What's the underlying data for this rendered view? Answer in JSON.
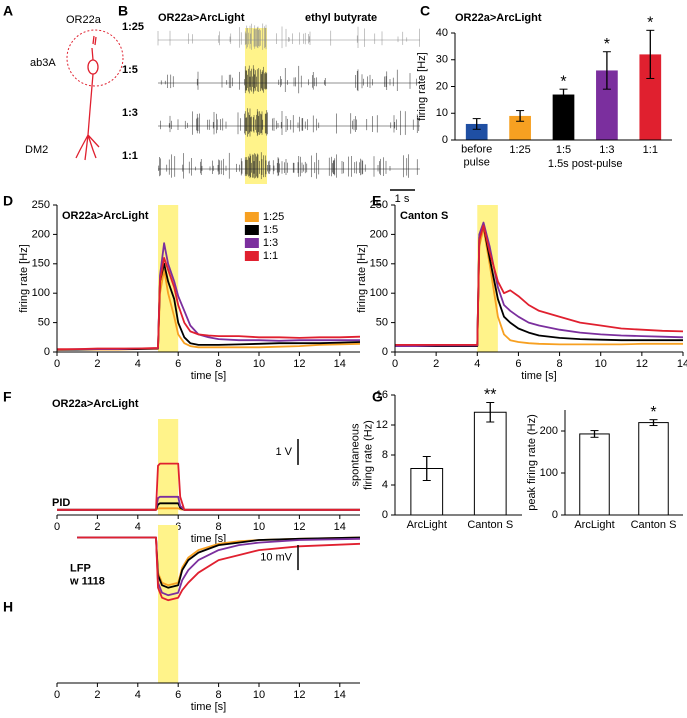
{
  "figure_A": {
    "panel": "A",
    "labels": [
      "OR22a",
      "ab3A",
      "DM2"
    ]
  },
  "figure_B": {
    "panel": "B",
    "title": "OR22a>ArcLight",
    "stimulus_label": "ethyl butyrate",
    "rows": [
      "1:25",
      "1:5",
      "1:3",
      "1:1"
    ],
    "scale_bar": "1 s"
  },
  "chart_data": [
    {
      "panel": "C",
      "type": "bar",
      "title": "OR22a>ArcLight",
      "ylabel": "firing rate [Hz]",
      "categories": [
        "before\npulse",
        "1:25",
        "1:5",
        "1:3",
        "1:1"
      ],
      "group_label": "1.5s post-pulse",
      "values": [
        6,
        9,
        17,
        26,
        32
      ],
      "errors": [
        2,
        2,
        2,
        7,
        9
      ],
      "colors": [
        "#1f4fa3",
        "#f7a021",
        "#000000",
        "#7b2f9e",
        "#e0202f"
      ],
      "significance": [
        null,
        null,
        "*",
        "*",
        "*"
      ],
      "ylim": [
        0,
        40
      ],
      "yticks": [
        0,
        10,
        20,
        30,
        40
      ]
    },
    {
      "panel": "D",
      "type": "line",
      "title": "OR22a>ArcLight",
      "xlabel": "time [s]",
      "ylabel": "firing rate [Hz]",
      "stimulus": [
        5,
        6
      ],
      "legend": "upper right",
      "x": [
        0,
        1,
        2,
        3,
        4,
        5,
        5.1,
        5.3,
        5.5,
        5.8,
        6,
        6.3,
        6.6,
        7,
        7.5,
        8,
        9,
        10,
        11,
        12,
        13,
        14,
        15
      ],
      "series": [
        {
          "name": "1:25",
          "color": "#f7a021",
          "values": [
            3,
            4,
            4,
            4,
            5,
            5,
            100,
            140,
            100,
            60,
            30,
            15,
            10,
            8,
            8,
            8,
            8,
            8,
            9,
            10,
            12,
            13,
            14
          ]
        },
        {
          "name": "1:5",
          "color": "#000000",
          "values": [
            4,
            4,
            5,
            5,
            5,
            6,
            120,
            150,
            120,
            90,
            50,
            25,
            15,
            12,
            12,
            12,
            13,
            14,
            15,
            15,
            15,
            16,
            17
          ]
        },
        {
          "name": "1:3",
          "color": "#7b2f9e",
          "values": [
            4,
            5,
            5,
            5,
            6,
            6,
            130,
            185,
            150,
            120,
            95,
            70,
            45,
            30,
            25,
            22,
            20,
            20,
            19,
            20,
            20,
            20,
            20
          ]
        },
        {
          "name": "1:1",
          "color": "#e0202f",
          "values": [
            5,
            5,
            6,
            6,
            6,
            7,
            120,
            160,
            140,
            110,
            80,
            50,
            35,
            30,
            28,
            27,
            27,
            25,
            25,
            24,
            25,
            25,
            26
          ]
        }
      ],
      "xlim": [
        0,
        15
      ],
      "xticks": [
        0,
        2,
        4,
        6,
        8,
        10,
        12,
        14
      ],
      "ylim": [
        0,
        250
      ],
      "yticks": [
        0,
        50,
        100,
        150,
        200,
        250
      ]
    },
    {
      "panel": "E",
      "type": "line",
      "title": "Canton S",
      "xlabel": "time [s]",
      "ylabel": "firing rate [Hz]",
      "stimulus": [
        4,
        5
      ],
      "x": [
        0,
        1,
        2,
        3,
        4,
        4.1,
        4.3,
        4.6,
        5,
        5.3,
        5.6,
        6,
        6.5,
        7,
        8,
        9,
        10,
        11,
        12,
        13,
        14
      ],
      "series": [
        {
          "color": "#f7a021",
          "values": [
            12,
            11,
            11,
            11,
            11,
            180,
            210,
            150,
            60,
            30,
            20,
            17,
            15,
            14,
            13,
            13,
            13,
            13,
            14,
            14,
            14
          ]
        },
        {
          "color": "#000000",
          "values": [
            10,
            10,
            10,
            10,
            10,
            195,
            215,
            160,
            90,
            60,
            50,
            40,
            33,
            28,
            24,
            22,
            21,
            20,
            20,
            20,
            20
          ]
        },
        {
          "color": "#7b2f9e",
          "values": [
            10,
            10,
            11,
            11,
            11,
            200,
            220,
            180,
            110,
            80,
            70,
            60,
            50,
            45,
            38,
            33,
            30,
            28,
            27,
            26,
            25
          ]
        },
        {
          "color": "#e0202f",
          "values": [
            12,
            12,
            12,
            12,
            12,
            190,
            215,
            170,
            120,
            100,
            105,
            95,
            80,
            70,
            60,
            50,
            45,
            40,
            38,
            36,
            35
          ]
        }
      ],
      "xlim": [
        0,
        14
      ],
      "xticks": [
        0,
        2,
        4,
        6,
        8,
        10,
        12,
        14
      ],
      "ylim": [
        0,
        250
      ],
      "yticks": [
        0,
        50,
        100,
        150,
        200,
        250
      ]
    },
    {
      "panel": "F",
      "type": "line",
      "title": "OR22a>ArcLight",
      "annotation": "PID",
      "xlabel": "time [s]",
      "stimulus": [
        5,
        6
      ],
      "scale_bar": {
        "value": 1,
        "label": "1 V"
      },
      "x": [
        0,
        4.9,
        5,
        5.1,
        6,
        6.1,
        6.3,
        15
      ],
      "series": [
        {
          "color": "#f7a021",
          "values": [
            0,
            0,
            0.05,
            0.06,
            0.06,
            0.02,
            0,
            0
          ]
        },
        {
          "color": "#000000",
          "values": [
            0,
            0,
            0.2,
            0.25,
            0.25,
            0.08,
            0,
            0
          ]
        },
        {
          "color": "#7b2f9e",
          "values": [
            0,
            0,
            0.45,
            0.5,
            0.5,
            0.15,
            0,
            0
          ]
        },
        {
          "color": "#e0202f",
          "values": [
            0,
            0,
            1.7,
            1.78,
            1.78,
            0.5,
            0,
            0
          ]
        }
      ],
      "xlim": [
        0,
        15
      ],
      "xticks": [
        0,
        2,
        4,
        6,
        8,
        10,
        12,
        14
      ],
      "ylim": [
        -0.2,
        3.5
      ]
    },
    {
      "panel": "G",
      "type": "bar",
      "ylabel": "spontaneous\nfiring rate (Hz)",
      "categories": [
        "ArcLight",
        "Canton S"
      ],
      "values": [
        6.2,
        13.7
      ],
      "errors": [
        1.6,
        1.3
      ],
      "color": "#ffffff",
      "edgecolor": "#000000",
      "significance": [
        null,
        "**"
      ],
      "ylim": [
        0,
        16
      ],
      "yticks": [
        0,
        4,
        8,
        12,
        16
      ]
    },
    {
      "type": "bar",
      "ylabel": "peak firing rate (Hz)",
      "categories": [
        "ArcLight",
        "Canton S"
      ],
      "values": [
        193,
        220
      ],
      "errors": [
        8,
        7
      ],
      "color": "#ffffff",
      "edgecolor": "#000000",
      "significance": [
        null,
        "*"
      ],
      "ylim": [
        0,
        250
      ],
      "yticks": [
        0,
        100,
        200
      ]
    },
    {
      "panel": "H",
      "type": "line",
      "title": "LFP\nw 1118",
      "xlabel": "time [s]",
      "stimulus": [
        5,
        6
      ],
      "scale_bar": {
        "value": 10,
        "label": "10 mV"
      },
      "x": [
        1,
        4.9,
        5,
        5.2,
        5.5,
        6,
        6.2,
        6.5,
        7,
        8,
        9,
        10,
        12,
        15
      ],
      "series": [
        {
          "color": "#f7a021",
          "values": [
            0,
            0,
            -14,
            -18,
            -19,
            -18,
            -12,
            -8,
            -5,
            -2.5,
            -1.5,
            -1,
            -0.5,
            0
          ]
        },
        {
          "color": "#000000",
          "values": [
            0,
            0,
            -15,
            -19,
            -20,
            -19,
            -13,
            -9,
            -6,
            -3,
            -2,
            -1,
            -0.5,
            0
          ]
        },
        {
          "color": "#7b2f9e",
          "values": [
            0,
            0,
            -18,
            -22,
            -23,
            -22,
            -17,
            -13,
            -9,
            -5,
            -3,
            -2,
            -1,
            -0.5
          ]
        },
        {
          "color": "#e0202f",
          "values": [
            0,
            0,
            -20,
            -24,
            -25,
            -24,
            -21,
            -18,
            -14,
            -9,
            -7,
            -5,
            -3.5,
            -2.5
          ]
        }
      ],
      "xlim": [
        0,
        15
      ],
      "xticks": [
        0,
        2,
        4,
        6,
        8,
        10,
        12,
        14
      ],
      "ylim": [
        -58,
        5
      ]
    }
  ]
}
